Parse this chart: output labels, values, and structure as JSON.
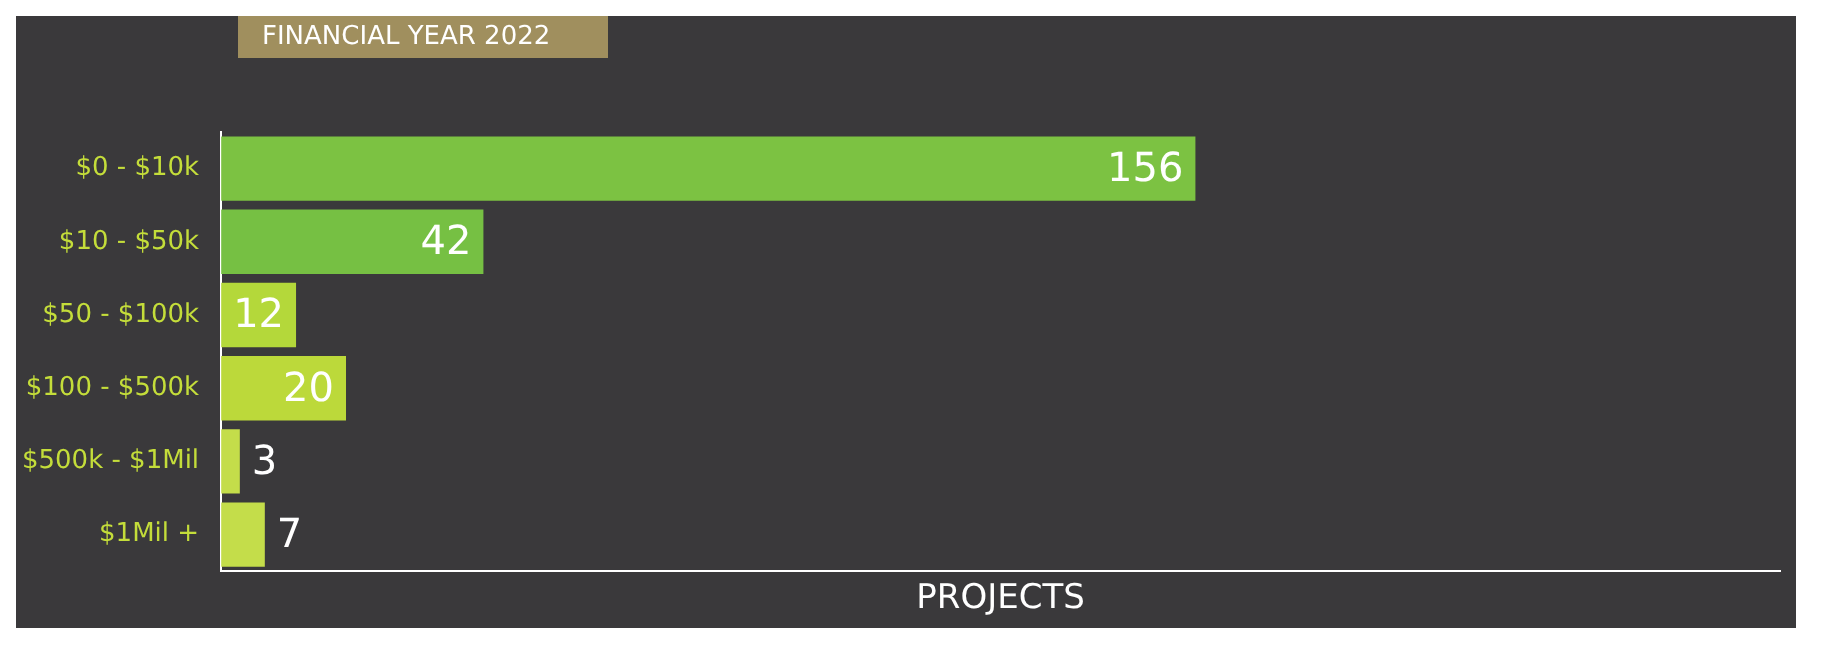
{
  "chart_data": {
    "type": "bar",
    "orientation": "horizontal",
    "title": "FINANCIAL YEAR 2022",
    "xlabel": "PROJECTS",
    "categories": [
      "$0 - $10k",
      "$10 - $50k",
      "$50 - $100k",
      "$100 - $500k",
      "$500k - $1Mil",
      "$1Mil +"
    ],
    "values": [
      156,
      42,
      12,
      20,
      3,
      7
    ],
    "colors": [
      "#7cc242",
      "#76c043",
      "#b4d83a",
      "#bcd93a",
      "#c4dd4a",
      "#c4dd4a"
    ],
    "data_labels": true,
    "grid": false,
    "legend": false,
    "tick_labels": "y"
  }
}
